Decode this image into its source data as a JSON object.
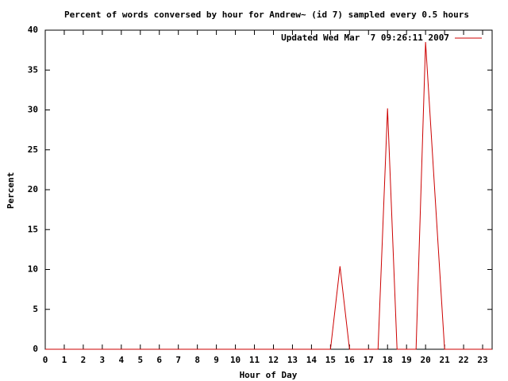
{
  "chart_data": {
    "type": "line",
    "title": "Percent of words conversed by hour for Andrew~ (id 7) sampled every 0.5 hours",
    "x_label": "Hour of Day",
    "y_label": "Percent",
    "x": [
      0,
      0.5,
      1,
      1.5,
      2,
      2.5,
      3,
      3.5,
      4,
      4.5,
      5,
      5.5,
      6,
      6.5,
      7,
      7.5,
      8,
      8.5,
      9,
      9.5,
      10,
      10.5,
      11,
      11.5,
      12,
      12.5,
      13,
      13.5,
      14,
      14.5,
      15,
      15.5,
      16,
      16.5,
      17,
      17.5,
      18,
      18.5,
      19,
      19.5,
      20,
      20.5,
      21,
      21.5,
      22,
      22.5,
      23,
      23.5
    ],
    "series": [
      {
        "name": "Updated Wed Mar  7 09:26:11 2007",
        "color": "#cc0000",
        "values": [
          0,
          0,
          0,
          0,
          0,
          0,
          0,
          0,
          0,
          0,
          0,
          0,
          0,
          0,
          0,
          0,
          0,
          0,
          0,
          0,
          0,
          0,
          0,
          0,
          0,
          0,
          0,
          0,
          0,
          0,
          0,
          10.4,
          0,
          0,
          0,
          0,
          30.2,
          0,
          0,
          0,
          38.5,
          19.2,
          0,
          0,
          0,
          0,
          0,
          0
        ]
      }
    ],
    "xlim": [
      0,
      23.5
    ],
    "ylim": [
      0,
      40
    ],
    "xticks": [
      0,
      1,
      2,
      3,
      4,
      5,
      6,
      7,
      8,
      9,
      10,
      11,
      12,
      13,
      14,
      15,
      16,
      17,
      18,
      19,
      20,
      21,
      22,
      23
    ],
    "yticks": [
      0,
      5,
      10,
      15,
      20,
      25,
      30,
      35,
      40
    ],
    "grid": false,
    "legend_position": "top-right"
  }
}
